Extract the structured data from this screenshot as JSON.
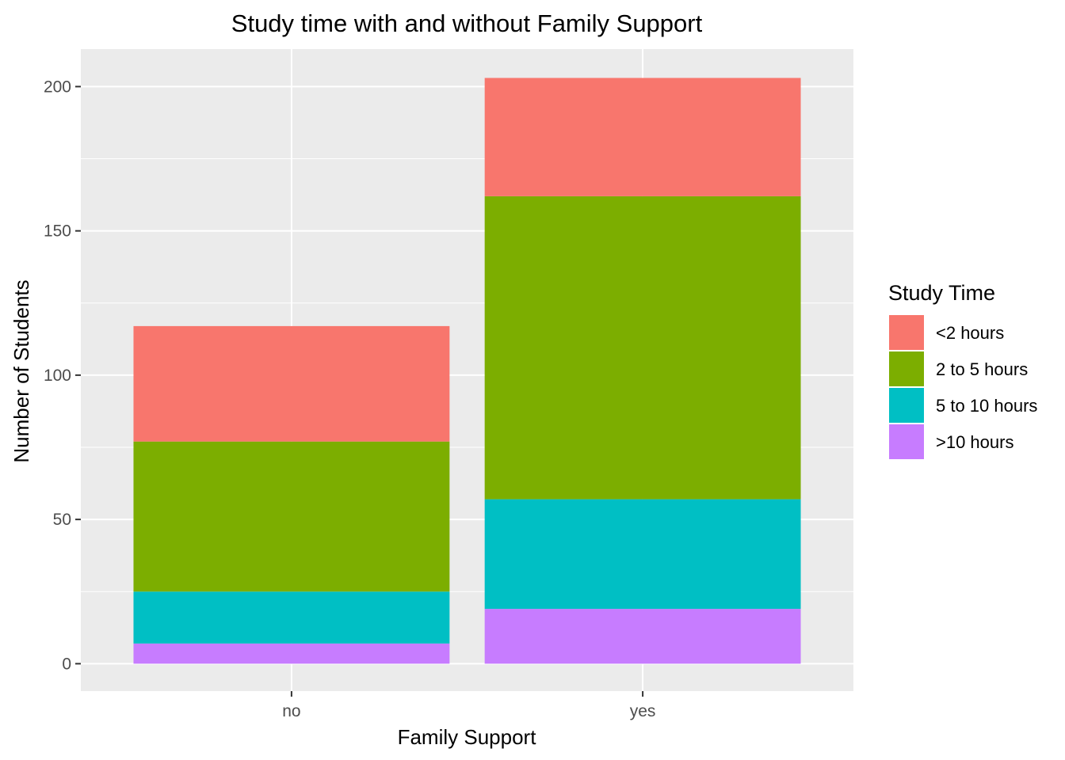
{
  "chart_data": {
    "type": "bar",
    "stacked": true,
    "title": "Study time with and without Family Support",
    "xlabel": "Family Support",
    "ylabel": "Number of Students",
    "categories": [
      "no",
      "yes"
    ],
    "ylim": [
      -9.5,
      213
    ],
    "yticks": [
      0,
      50,
      100,
      150,
      200
    ],
    "grid": true,
    "legend": {
      "title": "Study Time",
      "position": "right",
      "items": [
        "<2 hours",
        "2 to 5 hours",
        "5 to 10 hours",
        ">10 hours"
      ]
    },
    "series": [
      {
        "name": "<2 hours",
        "color": "#F8766D",
        "values": [
          40,
          41
        ]
      },
      {
        "name": "2 to 5 hours",
        "color": "#7CAE00",
        "values": [
          52,
          105
        ]
      },
      {
        "name": "5 to 10 hours",
        "color": "#00BFC4",
        "values": [
          18,
          38
        ]
      },
      {
        "name": ">10 hours",
        "color": "#C77CFF",
        "values": [
          7,
          19
        ]
      }
    ],
    "stack_order": [
      ">10 hours",
      "5 to 10 hours",
      "2 to 5 hours",
      "<2 hours"
    ],
    "colors": {
      "panel": "#EBEBEB",
      "grid": "#FFFFFF",
      "tick_text": "#4D4D4D"
    }
  }
}
